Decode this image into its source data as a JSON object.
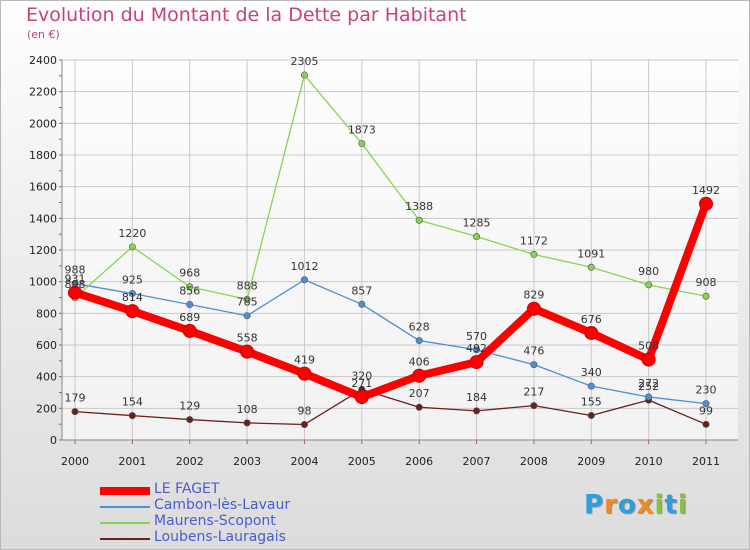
{
  "chart_data": {
    "type": "line",
    "title": "Evolution du Montant de la Dette par Habitant",
    "subtitle": "(en €)",
    "x": [
      "2000",
      "2001",
      "2002",
      "2003",
      "2004",
      "2005",
      "2006",
      "2007",
      "2008",
      "2009",
      "2010",
      "2011"
    ],
    "ylim": [
      0,
      2400
    ],
    "yticks": [
      0,
      200,
      400,
      600,
      800,
      1000,
      1200,
      1400,
      1600,
      1800,
      2000,
      2200,
      2400
    ],
    "grid": true,
    "legend_position": "bottom-left",
    "series": [
      {
        "name": "LE FAGET",
        "color": "#ff0000",
        "values": [
          931,
          814,
          689,
          558,
          419,
          271,
          406,
          492,
          829,
          676,
          508,
          1492
        ]
      },
      {
        "name": "Cambon-lès-Lavaur",
        "color": "#4f8fd0",
        "values": [
          988,
          925,
          856,
          785,
          1012,
          857,
          628,
          570,
          476,
          340,
          272,
          230
        ]
      },
      {
        "name": "Maurens-Scopont",
        "color": "#88d451",
        "values": [
          898,
          1220,
          968,
          888,
          2305,
          1873,
          1388,
          1285,
          1172,
          1091,
          980,
          908
        ]
      },
      {
        "name": "Loubens-Lauragais",
        "color": "#6b1e1e",
        "values": [
          179,
          154,
          129,
          108,
          98,
          320,
          207,
          184,
          217,
          155,
          252,
          99
        ]
      }
    ]
  },
  "logo": {
    "letters": [
      "P",
      "r",
      "o",
      "x",
      "i",
      "t",
      "i"
    ],
    "colors": [
      "#2aa0e0",
      "#f08a1c",
      "#2aa0e0",
      "#f08a1c",
      "#88c040",
      "#2aa0e0",
      "#88c040"
    ]
  }
}
